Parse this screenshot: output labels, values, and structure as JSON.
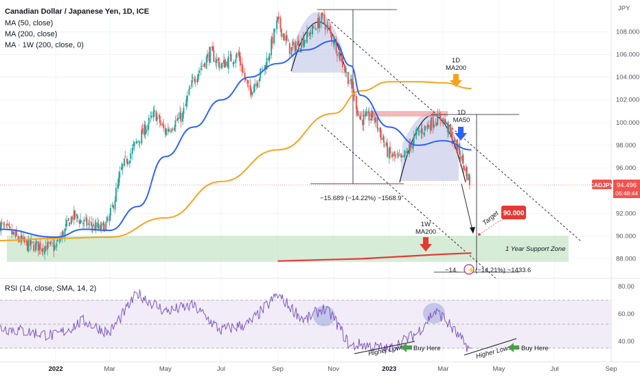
{
  "header": {
    "symbol_title": "Canadian Dollar / Japanese Yen, 1D, ICE",
    "indicators": [
      "MA (50, close)",
      "MA (200, close)",
      "MA · 1W (200, close, 0)"
    ],
    "rsi_label": "RSI (14, close, SMA, 14, 2)"
  },
  "price_axis": {
    "unit": "JPY",
    "ticks": [
      "108.000",
      "106.000",
      "104.000",
      "102.000",
      "100.000",
      "98.000",
      "96.000",
      "92.000",
      "90.000",
      "88.000"
    ],
    "last_price": "94.496",
    "countdown": "06:48:44",
    "symbol_badge": "CADJPY"
  },
  "rsi_axis": {
    "ticks": [
      "80.00",
      "60.00",
      "40.00"
    ]
  },
  "time_axis": {
    "labels": [
      "2022",
      "Mar",
      "May",
      "Jul",
      "Sep",
      "Nov",
      "2023",
      "Mar",
      "May",
      "Jul",
      "Sep"
    ]
  },
  "annotations": {
    "ma200_1d": [
      "1D",
      "MA200"
    ],
    "ma50_1d": [
      "1D",
      "MA50"
    ],
    "ma200_1w": [
      "1W",
      "MA200"
    ],
    "drop1": "−15.689 (−14.22%) −1568.9",
    "drop2_left": "−14.",
    "drop2_right": "(−14.21%) −1433.6",
    "target_label": "Target",
    "target_value": "90.000",
    "support_zone": "1 Year Support Zone",
    "higher_lows_1": "Higher Lows",
    "buy_here_1": "Buy Here",
    "higher_lows_2": "Higher Lows",
    "buy_here_2": "Buy Here"
  },
  "colors": {
    "bull": "#26a69a",
    "bear": "#ef5350",
    "ma50": "#2962ff",
    "ma200": "#f7a21b",
    "ma200_1w": "#e53935",
    "support_zone": "#c8e6c9",
    "pattern": "#c5cae9",
    "rsi": "#7e57c2"
  },
  "chart_data": {
    "type": "line",
    "title": "Canadian Dollar / Japanese Yen, 1D, ICE",
    "y_unit": "JPY",
    "ylim": [
      86.4,
      110.8
    ],
    "rsi_ylim": [
      25,
      85
    ],
    "x_labels": [
      "2022",
      "Mar",
      "May",
      "Jul",
      "Sep",
      "Nov",
      "2023",
      "Mar",
      "May",
      "Jul",
      "Sep"
    ],
    "price_close": [
      {
        "x": "2021-11",
        "y": 91.0
      },
      {
        "x": "2021-12",
        "y": 89.2
      },
      {
        "x": "2022-01",
        "y": 89.0
      },
      {
        "x": "2022-01-20",
        "y": 91.8
      },
      {
        "x": "2022-02",
        "y": 91.2
      },
      {
        "x": "2022-02-20",
        "y": 90.6
      },
      {
        "x": "2022-03",
        "y": 91.4
      },
      {
        "x": "2022-03-15",
        "y": 96.0
      },
      {
        "x": "2022-04",
        "y": 98.4
      },
      {
        "x": "2022-04-20",
        "y": 100.8
      },
      {
        "x": "2022-05",
        "y": 99.2
      },
      {
        "x": "2022-05-20",
        "y": 100.6
      },
      {
        "x": "2022-06",
        "y": 103.8
      },
      {
        "x": "2022-06-20",
        "y": 106.2
      },
      {
        "x": "2022-07",
        "y": 105.0
      },
      {
        "x": "2022-07-20",
        "y": 106.0
      },
      {
        "x": "2022-08",
        "y": 102.6
      },
      {
        "x": "2022-08-20",
        "y": 105.2
      },
      {
        "x": "2022-09",
        "y": 109.0
      },
      {
        "x": "2022-09-15",
        "y": 106.4
      },
      {
        "x": "2022-10",
        "y": 107.4
      },
      {
        "x": "2022-10-20",
        "y": 109.2
      },
      {
        "x": "2022-11",
        "y": 107.4
      },
      {
        "x": "2022-11-20",
        "y": 103.4
      },
      {
        "x": "2022-12",
        "y": 100.2
      },
      {
        "x": "2022-12-15",
        "y": 100.6
      },
      {
        "x": "2023-01",
        "y": 97.2
      },
      {
        "x": "2023-01-15",
        "y": 96.6
      },
      {
        "x": "2023-02",
        "y": 99.0
      },
      {
        "x": "2023-02-20",
        "y": 100.2
      },
      {
        "x": "2023-03",
        "y": 100.4
      },
      {
        "x": "2023-03-20",
        "y": 97.2
      },
      {
        "x": "2023-04",
        "y": 94.5
      }
    ],
    "series": [
      {
        "name": "MA (50, close)",
        "values": [
          {
            "x": "2021-11",
            "y": 90.6
          },
          {
            "x": "2022-01",
            "y": 89.9
          },
          {
            "x": "2022-02",
            "y": 90.6
          },
          {
            "x": "2022-03",
            "y": 90.5
          },
          {
            "x": "2022-04",
            "y": 92.6
          },
          {
            "x": "2022-05",
            "y": 97.0
          },
          {
            "x": "2022-06",
            "y": 99.6
          },
          {
            "x": "2022-07",
            "y": 102.0
          },
          {
            "x": "2022-08",
            "y": 104.0
          },
          {
            "x": "2022-09",
            "y": 105.2
          },
          {
            "x": "2022-10",
            "y": 106.4
          },
          {
            "x": "2022-11",
            "y": 107.2
          },
          {
            "x": "2022-11-20",
            "y": 105.0
          },
          {
            "x": "2022-12",
            "y": 102.4
          },
          {
            "x": "2023-01",
            "y": 99.6
          },
          {
            "x": "2023-02",
            "y": 98.0
          },
          {
            "x": "2023-03",
            "y": 98.4
          },
          {
            "x": "2023-04",
            "y": 97.6
          }
        ]
      },
      {
        "name": "MA (200, close)",
        "values": [
          {
            "x": "2021-11",
            "y": 89.6
          },
          {
            "x": "2022-01",
            "y": 89.8
          },
          {
            "x": "2022-03",
            "y": 89.9
          },
          {
            "x": "2022-05",
            "y": 91.6
          },
          {
            "x": "2022-07",
            "y": 94.8
          },
          {
            "x": "2022-09",
            "y": 97.6
          },
          {
            "x": "2022-11",
            "y": 100.8
          },
          {
            "x": "2022-12",
            "y": 102.8
          },
          {
            "x": "2023-01",
            "y": 103.6
          },
          {
            "x": "2023-02",
            "y": 103.6
          },
          {
            "x": "2023-03",
            "y": 103.5
          },
          {
            "x": "2023-04",
            "y": 103.0
          }
        ]
      },
      {
        "name": "MA · 1W (200, close, 0)",
        "values": [
          {
            "x": "2022-09",
            "y": 87.8
          },
          {
            "x": "2022-12",
            "y": 88.0
          },
          {
            "x": "2023-03",
            "y": 88.4
          },
          {
            "x": "2023-04",
            "y": 88.5
          }
        ]
      },
      {
        "name": "RSI (14, close, SMA, 14, 2)",
        "values": [
          {
            "x": "2021-11",
            "y": 50
          },
          {
            "x": "2022-01",
            "y": 44
          },
          {
            "x": "2022-02",
            "y": 55
          },
          {
            "x": "2022-03",
            "y": 46
          },
          {
            "x": "2022-04",
            "y": 75
          },
          {
            "x": "2022-05",
            "y": 62
          },
          {
            "x": "2022-06",
            "y": 66
          },
          {
            "x": "2022-07",
            "y": 48
          },
          {
            "x": "2022-08",
            "y": 53
          },
          {
            "x": "2022-09",
            "y": 74
          },
          {
            "x": "2022-10",
            "y": 55
          },
          {
            "x": "2022-10-20",
            "y": 64
          },
          {
            "x": "2022-11",
            "y": 58
          },
          {
            "x": "2022-11-20",
            "y": 36
          },
          {
            "x": "2022-12",
            "y": 38
          },
          {
            "x": "2023-01",
            "y": 34
          },
          {
            "x": "2023-02",
            "y": 46
          },
          {
            "x": "2023-02-20",
            "y": 62
          },
          {
            "x": "2023-03",
            "y": 58
          },
          {
            "x": "2023-03-20",
            "y": 42
          },
          {
            "x": "2023-04",
            "y": 33
          }
        ]
      }
    ],
    "levels": {
      "last_price": 94.496,
      "target": 90.0,
      "support_zone": [
        88.0,
        90.0
      ],
      "drop_1": {
        "points": -15.689,
        "percent": -14.22
      },
      "drop_2": {
        "percent": -14.21
      }
    },
    "rsi_bands": [
      70,
      50,
      30
    ],
    "grid": true,
    "legend": "top-left"
  }
}
